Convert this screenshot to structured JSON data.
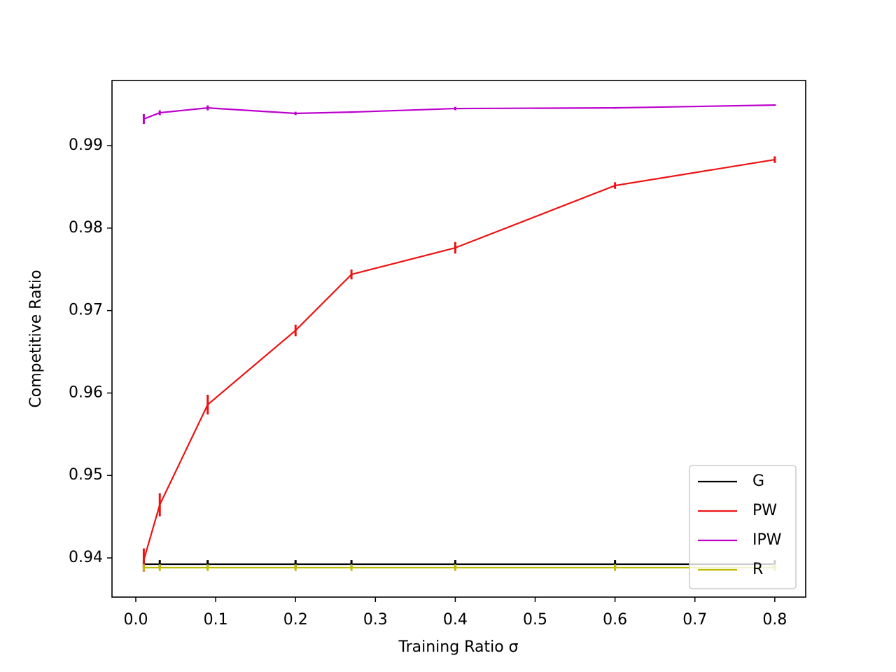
{
  "chart_data": {
    "type": "line",
    "x_label": "Training Ratio σ",
    "y_label": "Competitive Ratio",
    "x": [
      0.01,
      0.03,
      0.09,
      0.2,
      0.27,
      0.4,
      0.6,
      0.8
    ],
    "series": [
      {
        "name": "G",
        "color": "#000000",
        "values": [
          0.93924,
          0.93924,
          0.93924,
          0.93924,
          0.93924,
          0.93924,
          0.93924,
          0.93924
        ],
        "errors": [
          0.0005,
          0.0005,
          0.0005,
          0.0005,
          0.0005,
          0.0005,
          0.0005,
          0.0005
        ]
      },
      {
        "name": "PW",
        "color": "#ee1111",
        "values": [
          0.93975,
          0.94645,
          0.95859,
          0.96759,
          0.97438,
          0.97761,
          0.98516,
          0.9883
        ],
        "errors": [
          0.0014,
          0.0014,
          0.0012,
          0.0007,
          0.0006,
          0.0007,
          0.0004,
          0.0004
        ]
      },
      {
        "name": "IPW",
        "color": "#bb00cc",
        "values": [
          0.99323,
          0.99399,
          0.99458,
          0.99391,
          0.99407,
          0.9945,
          0.99458,
          0.99492
        ],
        "errors": [
          0.0006,
          0.0003,
          0.0003,
          0.0002,
          0.0001,
          0.0002,
          0.0001,
          0.0001
        ]
      },
      {
        "name": "R",
        "color": "#bbbb00",
        "values": [
          0.93882,
          0.93882,
          0.93882,
          0.93882,
          0.93882,
          0.93882,
          0.93882,
          0.93882
        ],
        "errors": [
          0.0004,
          0.0004,
          0.0004,
          0.0004,
          0.0004,
          0.0004,
          0.0004,
          0.0004
        ]
      }
    ],
    "xlim": [
      -0.0298,
      0.8387
    ],
    "ylim": [
      0.93525,
      0.9979
    ],
    "xticks": [
      {
        "value": 0,
        "label": "0.0"
      },
      0.1,
      0.2,
      0.3,
      0.4,
      0.5,
      0.6,
      0.7,
      0.8
    ],
    "yticks": [
      0.94,
      0.95,
      0.96,
      0.97,
      0.98,
      0.99
    ],
    "legend": "lower right",
    "grid": false
  }
}
